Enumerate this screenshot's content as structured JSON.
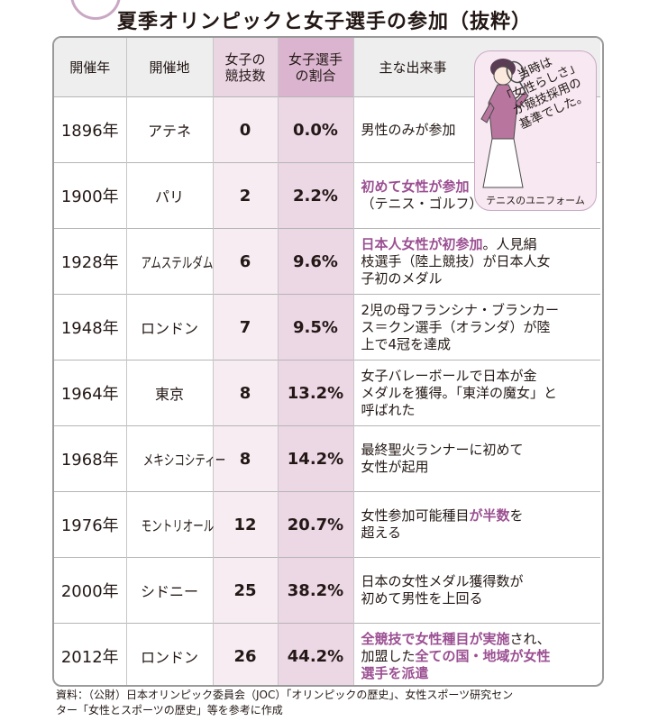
{
  "title": "夏季オリンピックと女子選手の参加（抜粋）",
  "headers": {
    "year": "開催年",
    "city": "開催地",
    "count": [
      "女子の",
      "競技数"
    ],
    "pct": [
      "女子選手",
      "の割合"
    ],
    "event": "主な出来事"
  },
  "rows": [
    {
      "year": "1896年",
      "city": "アテネ",
      "count": "0",
      "pct": "0.0%",
      "event": [
        {
          "t": "男性のみが参加"
        }
      ]
    },
    {
      "year": "1900年",
      "city": "パリ",
      "count": "2",
      "pct": "2.2%",
      "event": [
        {
          "t": "初めて女性が参加",
          "hl": true
        },
        {
          "br": true
        },
        {
          "t": "（テニス・ゴルフ）"
        }
      ]
    },
    {
      "year": "1928年",
      "city": "アムステルダム",
      "count": "6",
      "pct": "9.6%",
      "event": [
        {
          "t": "日本人女性が初参加",
          "hl": true
        },
        {
          "t": "。人見絹"
        },
        {
          "br": true
        },
        {
          "t": "枝選手（陸上競技）が日本人女"
        },
        {
          "br": true
        },
        {
          "t": "子初のメダル"
        }
      ]
    },
    {
      "year": "1948年",
      "city": "ロンドン",
      "count": "7",
      "pct": "9.5%",
      "event": [
        {
          "t": "2児の母フランシナ・ブランカー"
        },
        {
          "br": true
        },
        {
          "t": "ス＝クン選手（オランダ）が陸"
        },
        {
          "br": true
        },
        {
          "t": "上で4冠を達成"
        }
      ]
    },
    {
      "year": "1964年",
      "city": "東京",
      "count": "8",
      "pct": "13.2%",
      "event": [
        {
          "t": "女子バレーボールで日本が金"
        },
        {
          "br": true
        },
        {
          "t": "メダルを獲得。「東洋の魔女」と"
        },
        {
          "br": true
        },
        {
          "t": "呼ばれた"
        }
      ]
    },
    {
      "year": "1968年",
      "city": "メキシコシティー",
      "count": "8",
      "pct": "14.2%",
      "event": [
        {
          "t": "最終聖火ランナーに初めて"
        },
        {
          "br": true
        },
        {
          "t": "女性が起用"
        }
      ]
    },
    {
      "year": "1976年",
      "city": "モントリオール",
      "count": "12",
      "pct": "20.7%",
      "event": [
        {
          "t": "女性参加可能種目"
        },
        {
          "t": "が半数",
          "hl": true
        },
        {
          "t": "を"
        },
        {
          "br": true
        },
        {
          "t": "超える"
        }
      ]
    },
    {
      "year": "2000年",
      "city": "シドニー",
      "count": "25",
      "pct": "38.2%",
      "event": [
        {
          "t": "日本の女性メダル獲得数が"
        },
        {
          "br": true
        },
        {
          "t": "初めて男性を上回る"
        }
      ]
    },
    {
      "year": "2012年",
      "city": "ロンドン",
      "count": "26",
      "pct": "44.2%",
      "event": [
        {
          "t": "全競技で女性種目が実施",
          "hl": true
        },
        {
          "t": "され、"
        },
        {
          "br": true
        },
        {
          "t": "加盟した"
        },
        {
          "t": "全ての国・地域が女性",
          "hl": true
        },
        {
          "br": true
        },
        {
          "t": "選手を派遣",
          "hl": true
        }
      ]
    }
  ],
  "bubble": {
    "lines": [
      "当時は",
      "「女性らしさ」",
      "が競技採用の",
      "基準でした。"
    ],
    "caption": "テニスのユニフォーム"
  },
  "source_lines": [
    "資料：（公財）日本オリンピック委員会（JOC）「オリンピックの歴史」、女性スポーツ研究セン",
    "ター「女性とスポーツの歴史」等を参考に作成"
  ],
  "colors": {
    "accent": "#9b4f92",
    "count_column": "#f6ecf2",
    "pct_column": "#ecd7e5",
    "bubble": "#f7e8f1"
  },
  "illustration": "woman-tennis-player-icon"
}
